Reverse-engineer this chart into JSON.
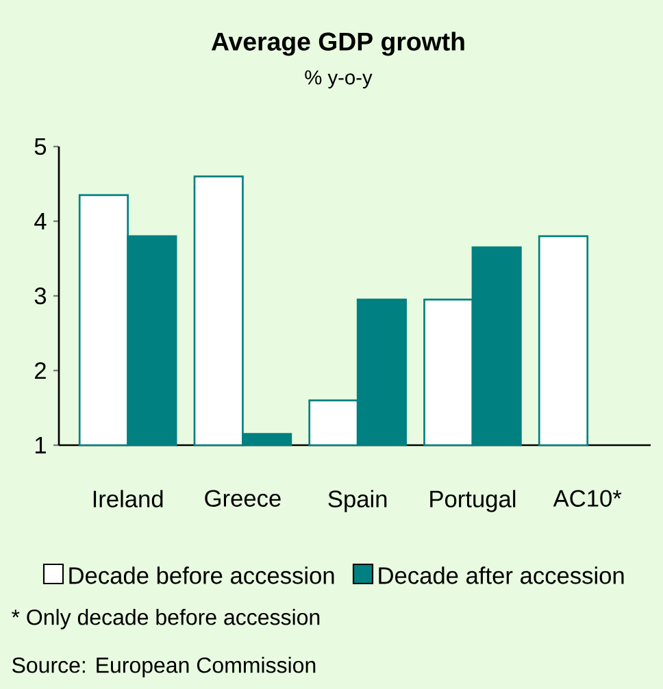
{
  "chart_data": {
    "type": "bar",
    "title": "Average GDP growth",
    "subtitle": "% y-o-y",
    "categories": [
      "Ireland",
      "Greece",
      "Spain",
      "Portugal",
      "AC10*"
    ],
    "series": [
      {
        "name": "Decade before accession",
        "color": "#ffffff",
        "values": [
          4.35,
          4.6,
          1.6,
          2.95,
          3.8
        ]
      },
      {
        "name": "Decade after accession",
        "color": "#008080",
        "values": [
          3.8,
          1.15,
          2.95,
          3.65,
          null
        ]
      }
    ],
    "ylim": [
      1,
      5
    ],
    "yticks": [
      1,
      2,
      3,
      4,
      5
    ],
    "grid": false,
    "legend": "bottom",
    "annotations": [
      "* Only decade before accession",
      "Source: European Commission"
    ]
  }
}
